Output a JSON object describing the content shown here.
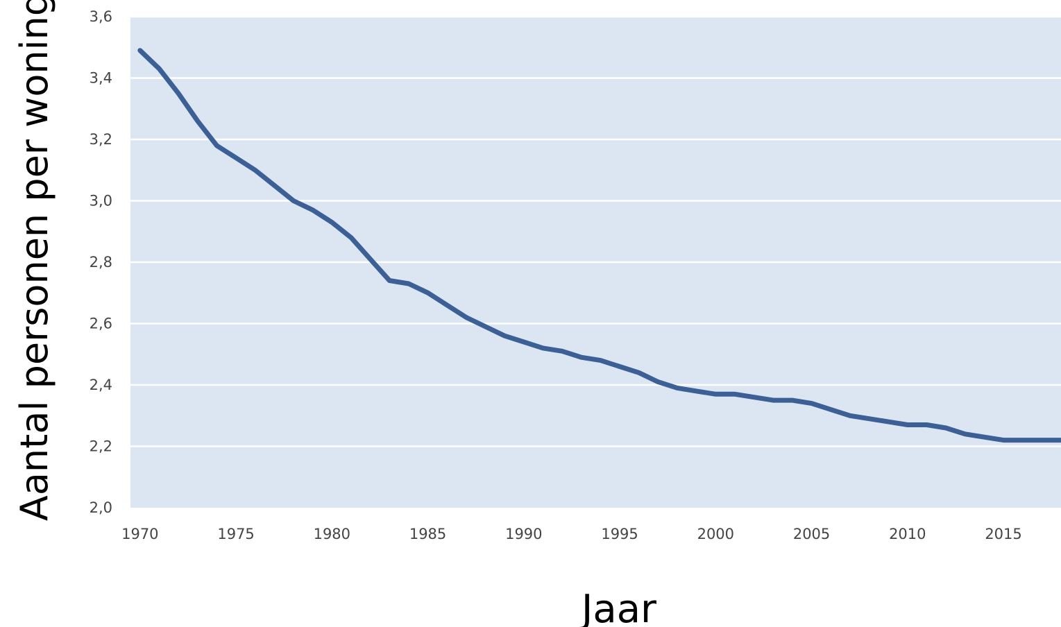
{
  "chart_data": {
    "type": "line",
    "title": "",
    "xlabel": "Jaar",
    "ylabel": "Aantal personen per woning",
    "xlim": [
      1969.5,
      2018
    ],
    "ylim": [
      2.0,
      3.6
    ],
    "x_ticks": [
      1970,
      1975,
      1980,
      1985,
      1990,
      1995,
      2000,
      2005,
      2010,
      2015
    ],
    "x_tick_labels": [
      "1970",
      "1975",
      "1980",
      "1985",
      "1990",
      "1995",
      "2000",
      "2005",
      "2010",
      "2015"
    ],
    "y_ticks": [
      2.0,
      2.2,
      2.4,
      2.6,
      2.8,
      3.0,
      3.2,
      3.4,
      3.6
    ],
    "y_tick_labels": [
      "2,0",
      "2,2",
      "2,4",
      "2,6",
      "2,8",
      "3,0",
      "3,2",
      "3,4",
      "3,6"
    ],
    "grid": "horizontal",
    "colors": {
      "line": "#3c5f95",
      "plot_background": "#dce6f2",
      "grid": "#ffffff"
    },
    "series": [
      {
        "x": [
          1970,
          1971,
          1972,
          1973,
          1974,
          1975,
          1976,
          1977,
          1978,
          1979,
          1980,
          1981,
          1982,
          1983,
          1984,
          1985,
          1986,
          1987,
          1988,
          1989,
          1990,
          1991,
          1992,
          1993,
          1994,
          1995,
          1996,
          1997,
          1998,
          1999,
          2000,
          2001,
          2002,
          2003,
          2004,
          2005,
          2006,
          2007,
          2008,
          2009,
          2010,
          2011,
          2012,
          2013,
          2014,
          2015,
          2016,
          2017,
          2018
        ],
        "y": [
          3.49,
          3.43,
          3.35,
          3.26,
          3.18,
          3.14,
          3.1,
          3.05,
          3.0,
          2.97,
          2.93,
          2.88,
          2.81,
          2.74,
          2.73,
          2.7,
          2.66,
          2.62,
          2.59,
          2.56,
          2.54,
          2.52,
          2.51,
          2.49,
          2.48,
          2.46,
          2.44,
          2.41,
          2.39,
          2.38,
          2.37,
          2.37,
          2.36,
          2.35,
          2.35,
          2.34,
          2.32,
          2.3,
          2.29,
          2.28,
          2.27,
          2.27,
          2.26,
          2.24,
          2.23,
          2.22,
          2.22,
          2.22,
          2.22
        ]
      }
    ]
  }
}
